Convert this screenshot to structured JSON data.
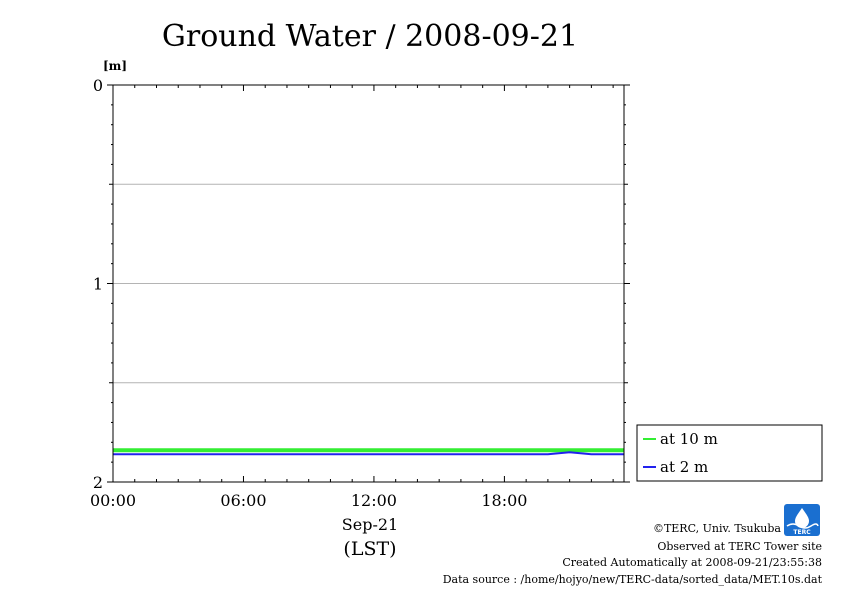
{
  "chart_data": {
    "type": "line",
    "title": "Ground Water / 2008-09-21",
    "y_unit": "[m]",
    "ylim": [
      0,
      2
    ],
    "y_inverted": true,
    "y_ticks": [
      "0",
      "1",
      "2"
    ],
    "y_grid": [
      0.5,
      1,
      1.5
    ],
    "x_ticks": [
      "00:00",
      "06:00",
      "12:00",
      "18:00"
    ],
    "x_range_hours": [
      0,
      23.5
    ],
    "x_date_label": "Sep-21",
    "x_timezone_label": "(LST)",
    "grid": true,
    "legend": "bottom-right",
    "series": [
      {
        "name": "at 10 m",
        "color": "#33ee33",
        "x": [
          0,
          2,
          4,
          6,
          8,
          10,
          12,
          14,
          16,
          18,
          20,
          21,
          22,
          23.5
        ],
        "y": [
          1.84,
          1.84,
          1.84,
          1.84,
          1.84,
          1.84,
          1.84,
          1.84,
          1.84,
          1.84,
          1.84,
          1.84,
          1.84,
          1.84
        ]
      },
      {
        "name": "at 2 m",
        "color": "#2222ee",
        "x": [
          0,
          2,
          4,
          6,
          8,
          10,
          12,
          14,
          16,
          18,
          20,
          21,
          22,
          23.5
        ],
        "y": [
          1.86,
          1.86,
          1.86,
          1.86,
          1.86,
          1.86,
          1.86,
          1.86,
          1.86,
          1.86,
          1.86,
          1.85,
          1.86,
          1.86
        ]
      }
    ]
  },
  "credits": {
    "copyright": "©TERC, Univ. Tsukuba",
    "observed": "Observed at TERC Tower site",
    "created": "Created Automatically at 2008-09-21/23:55:38",
    "source": "Data source : /home/hojyo/new/TERC-data/sorted_data/MET.10s.dat"
  },
  "logo": {
    "label": "TERC",
    "color": "#1a6fd0"
  }
}
